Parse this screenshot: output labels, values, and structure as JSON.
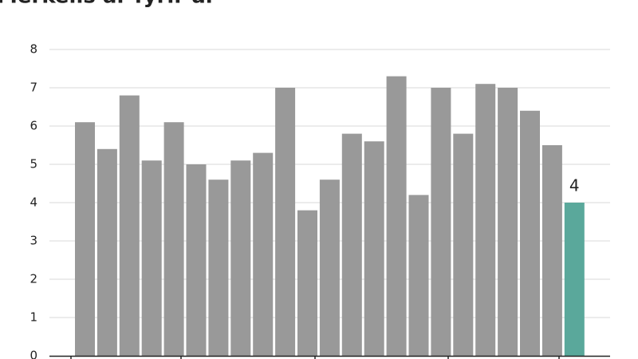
{
  "chart_data": {
    "type": "bar",
    "title": "Merkelis ár fyrir ár",
    "categories": [
      null,
      null,
      null,
      null,
      null,
      null,
      null,
      null,
      null,
      null,
      null,
      null,
      null,
      null,
      null,
      null,
      null,
      null,
      null,
      null,
      null,
      null,
      null
    ],
    "values": [
      6.1,
      5.4,
      6.8,
      5.1,
      6.1,
      5.0,
      4.6,
      5.1,
      5.3,
      7.0,
      3.8,
      4.6,
      5.8,
      5.6,
      7.3,
      4.2,
      7.0,
      5.8,
      7.1,
      7.0,
      6.4,
      5.5,
      4.0
    ],
    "value_labels": [
      null,
      null,
      null,
      null,
      null,
      null,
      null,
      null,
      null,
      null,
      null,
      null,
      null,
      null,
      null,
      null,
      null,
      null,
      null,
      null,
      null,
      null,
      "4"
    ],
    "colors": [
      "#999999",
      "#999999",
      "#999999",
      "#999999",
      "#999999",
      "#999999",
      "#999999",
      "#999999",
      "#999999",
      "#999999",
      "#999999",
      "#999999",
      "#999999",
      "#999999",
      "#999999",
      "#999999",
      "#999999",
      "#999999",
      "#999999",
      "#999999",
      "#999999",
      "#999999",
      "#5aa89b"
    ],
    "ylim": [
      0,
      8
    ],
    "yticks": [
      0,
      1,
      2,
      3,
      4,
      5,
      6,
      7,
      8
    ],
    "grid": true
  }
}
